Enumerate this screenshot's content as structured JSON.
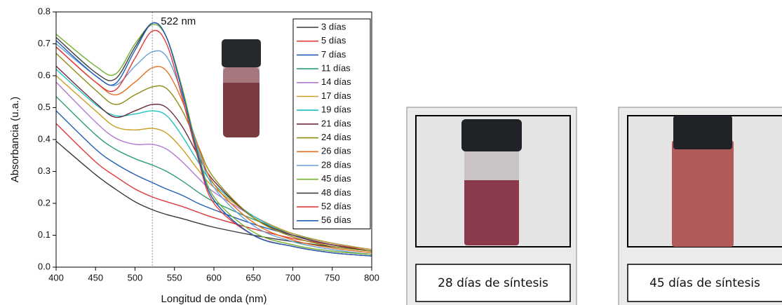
{
  "chart_data": {
    "type": "line",
    "xlabel": "Longitud de onda (nm)",
    "ylabel": "Absorbancia (u.a.)",
    "annotation": "522 nm",
    "annotation_x": 522,
    "x": [
      400,
      450,
      475,
      500,
      522,
      540,
      560,
      580,
      600,
      650,
      700,
      750,
      800
    ],
    "xlim": [
      400,
      800
    ],
    "xticks": [
      400,
      450,
      500,
      550,
      600,
      650,
      700,
      750,
      800
    ],
    "ylim": [
      0,
      0.8
    ],
    "yticks": [
      {
        "value": 0,
        "label": "0.0"
      },
      0.1,
      0.2,
      0.3,
      0.4,
      0.5,
      0.6,
      0.7,
      0.8
    ],
    "legend": "upper right",
    "series": [
      {
        "name": "3 días",
        "color": "#3a3a3a",
        "values": [
          0.395,
          0.29,
          0.245,
          0.205,
          0.18,
          0.165,
          0.152,
          0.138,
          0.125,
          0.1,
          0.08,
          0.064,
          0.05
        ]
      },
      {
        "name": "5 días",
        "color": "#e03a3a",
        "values": [
          0.45,
          0.33,
          0.285,
          0.245,
          0.22,
          0.205,
          0.19,
          0.172,
          0.155,
          0.12,
          0.09,
          0.07,
          0.055
        ]
      },
      {
        "name": "7 días",
        "color": "#2060b8",
        "values": [
          0.49,
          0.37,
          0.325,
          0.29,
          0.265,
          0.245,
          0.225,
          0.2,
          0.18,
          0.135,
          0.1,
          0.075,
          0.055
        ]
      },
      {
        "name": "11 días",
        "color": "#2e9e6e",
        "values": [
          0.535,
          0.415,
          0.37,
          0.34,
          0.32,
          0.3,
          0.27,
          0.235,
          0.205,
          0.15,
          0.105,
          0.075,
          0.055
        ]
      },
      {
        "name": "14 días",
        "color": "#b07ad0",
        "values": [
          0.58,
          0.455,
          0.405,
          0.385,
          0.385,
          0.37,
          0.33,
          0.28,
          0.235,
          0.16,
          0.105,
          0.075,
          0.055
        ]
      },
      {
        "name": "17 días",
        "color": "#c9a024",
        "values": [
          0.6,
          0.49,
          0.44,
          0.43,
          0.435,
          0.42,
          0.37,
          0.305,
          0.25,
          0.16,
          0.105,
          0.075,
          0.055
        ]
      },
      {
        "name": "19 días",
        "color": "#22c0c0",
        "values": [
          0.62,
          0.51,
          0.475,
          0.48,
          0.49,
          0.475,
          0.41,
          0.33,
          0.26,
          0.16,
          0.1,
          0.07,
          0.05
        ]
      },
      {
        "name": "21 días",
        "color": "#6b2c3a",
        "values": [
          0.63,
          0.515,
          0.47,
          0.49,
          0.51,
          0.5,
          0.44,
          0.35,
          0.27,
          0.155,
          0.1,
          0.07,
          0.05
        ]
      },
      {
        "name": "24 días",
        "color": "#8c8c14",
        "values": [
          0.67,
          0.555,
          0.51,
          0.54,
          0.565,
          0.56,
          0.49,
          0.38,
          0.28,
          0.155,
          0.095,
          0.065,
          0.05
        ]
      },
      {
        "name": "26 días",
        "color": "#e07020",
        "values": [
          0.69,
          0.58,
          0.54,
          0.58,
          0.625,
          0.615,
          0.52,
          0.38,
          0.26,
          0.14,
          0.085,
          0.06,
          0.045
        ]
      },
      {
        "name": "28 días",
        "color": "#6a9ed0",
        "values": [
          0.7,
          0.6,
          0.57,
          0.63,
          0.675,
          0.66,
          0.54,
          0.37,
          0.25,
          0.13,
          0.08,
          0.055,
          0.04
        ]
      },
      {
        "name": "45 días",
        "color": "#74b032",
        "values": [
          0.73,
          0.63,
          0.605,
          0.7,
          0.76,
          0.72,
          0.56,
          0.36,
          0.22,
          0.11,
          0.07,
          0.05,
          0.04
        ]
      },
      {
        "name": "48 días",
        "color": "#404040",
        "values": [
          0.72,
          0.61,
          0.59,
          0.69,
          0.765,
          0.72,
          0.55,
          0.35,
          0.21,
          0.1,
          0.065,
          0.045,
          0.035
        ]
      },
      {
        "name": "52 días",
        "color": "#e03a3a",
        "values": [
          0.69,
          0.58,
          0.555,
          0.655,
          0.74,
          0.7,
          0.53,
          0.34,
          0.2,
          0.1,
          0.065,
          0.045,
          0.035
        ]
      },
      {
        "name": "56 días",
        "color": "#2060b8",
        "values": [
          0.71,
          0.6,
          0.575,
          0.68,
          0.765,
          0.72,
          0.55,
          0.35,
          0.21,
          0.1,
          0.065,
          0.045,
          0.035
        ]
      }
    ]
  },
  "photos": [
    {
      "caption": "28 días de síntesis"
    },
    {
      "caption": "45 días de síntesis"
    }
  ]
}
